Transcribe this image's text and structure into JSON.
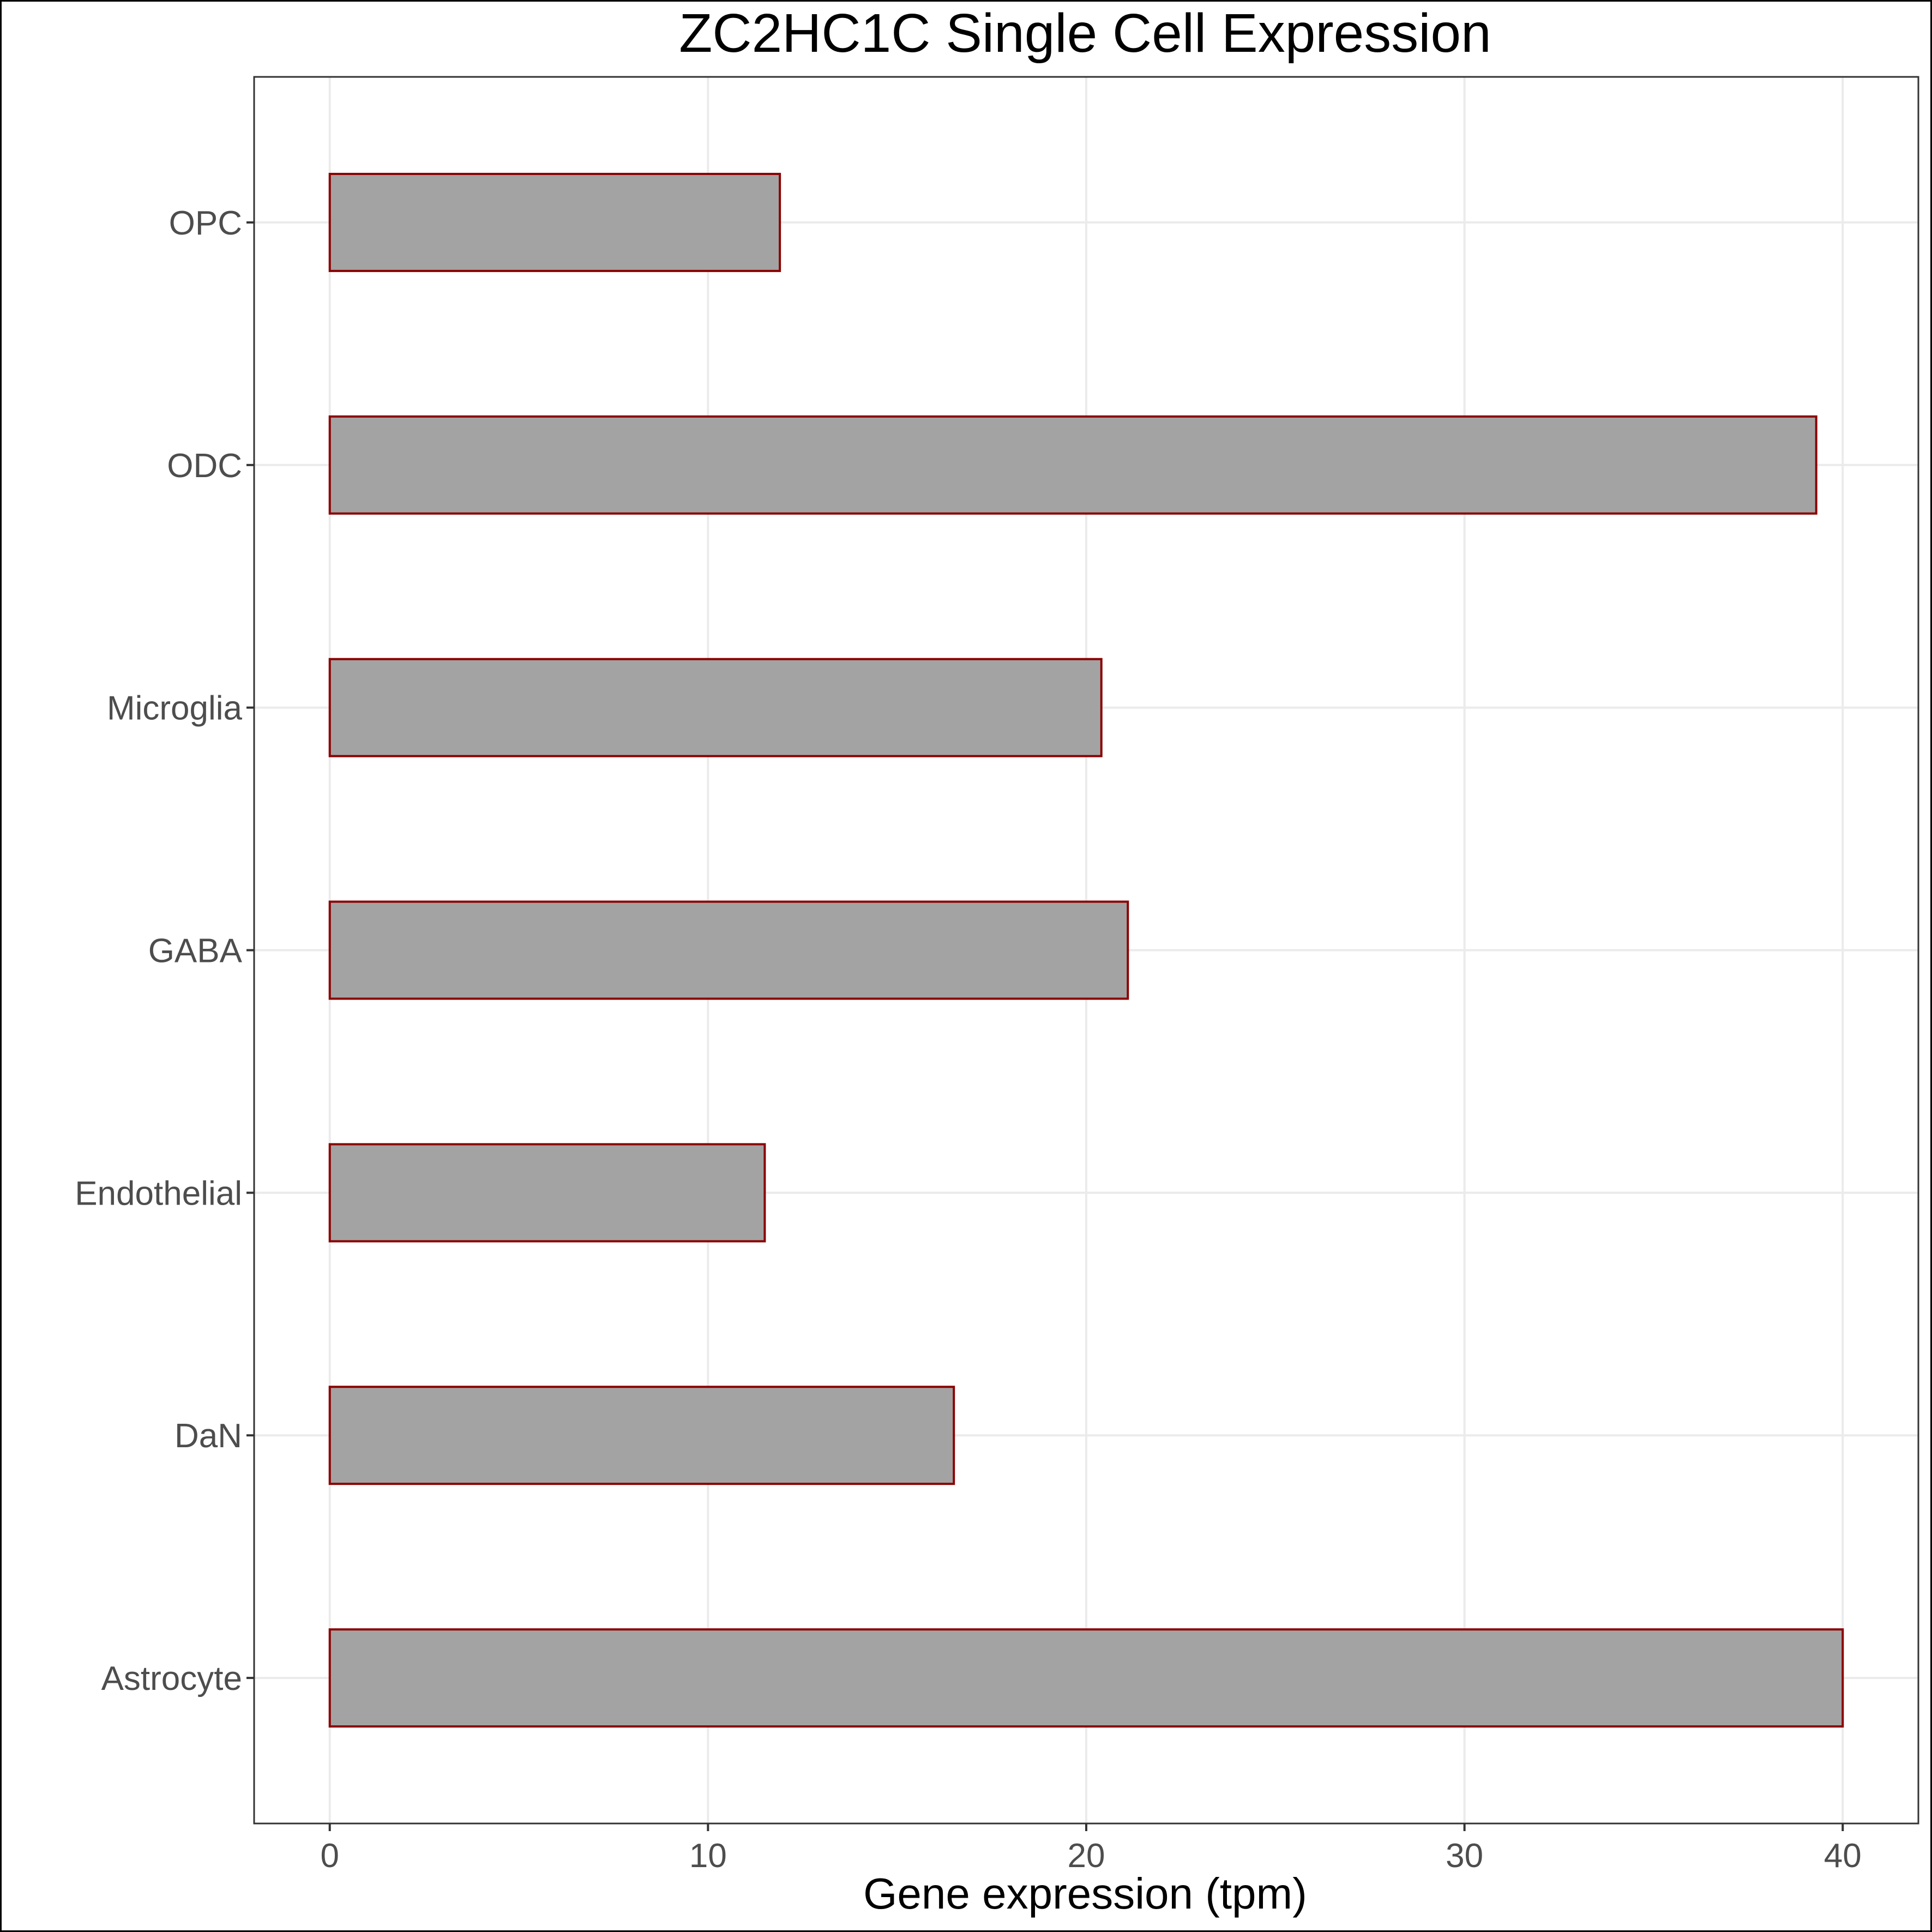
{
  "chart_data": {
    "type": "bar",
    "orientation": "horizontal",
    "title": "ZC2HC1C Single Cell Expression",
    "xlabel": "Gene expression (tpm)",
    "ylabel": "",
    "categories": [
      "Astrocyte",
      "DaN",
      "Endothelial",
      "GABA",
      "Microglia",
      "ODC",
      "OPC"
    ],
    "values": [
      40.0,
      16.5,
      11.5,
      21.1,
      20.4,
      39.3,
      11.9
    ],
    "xlim": [
      -2,
      42
    ],
    "xticks": [
      0,
      10,
      20,
      30,
      40
    ],
    "grid": true,
    "legend": "none",
    "colors": {
      "bar_fill": "#a3a3a3",
      "bar_stroke": "#8b0000"
    }
  }
}
